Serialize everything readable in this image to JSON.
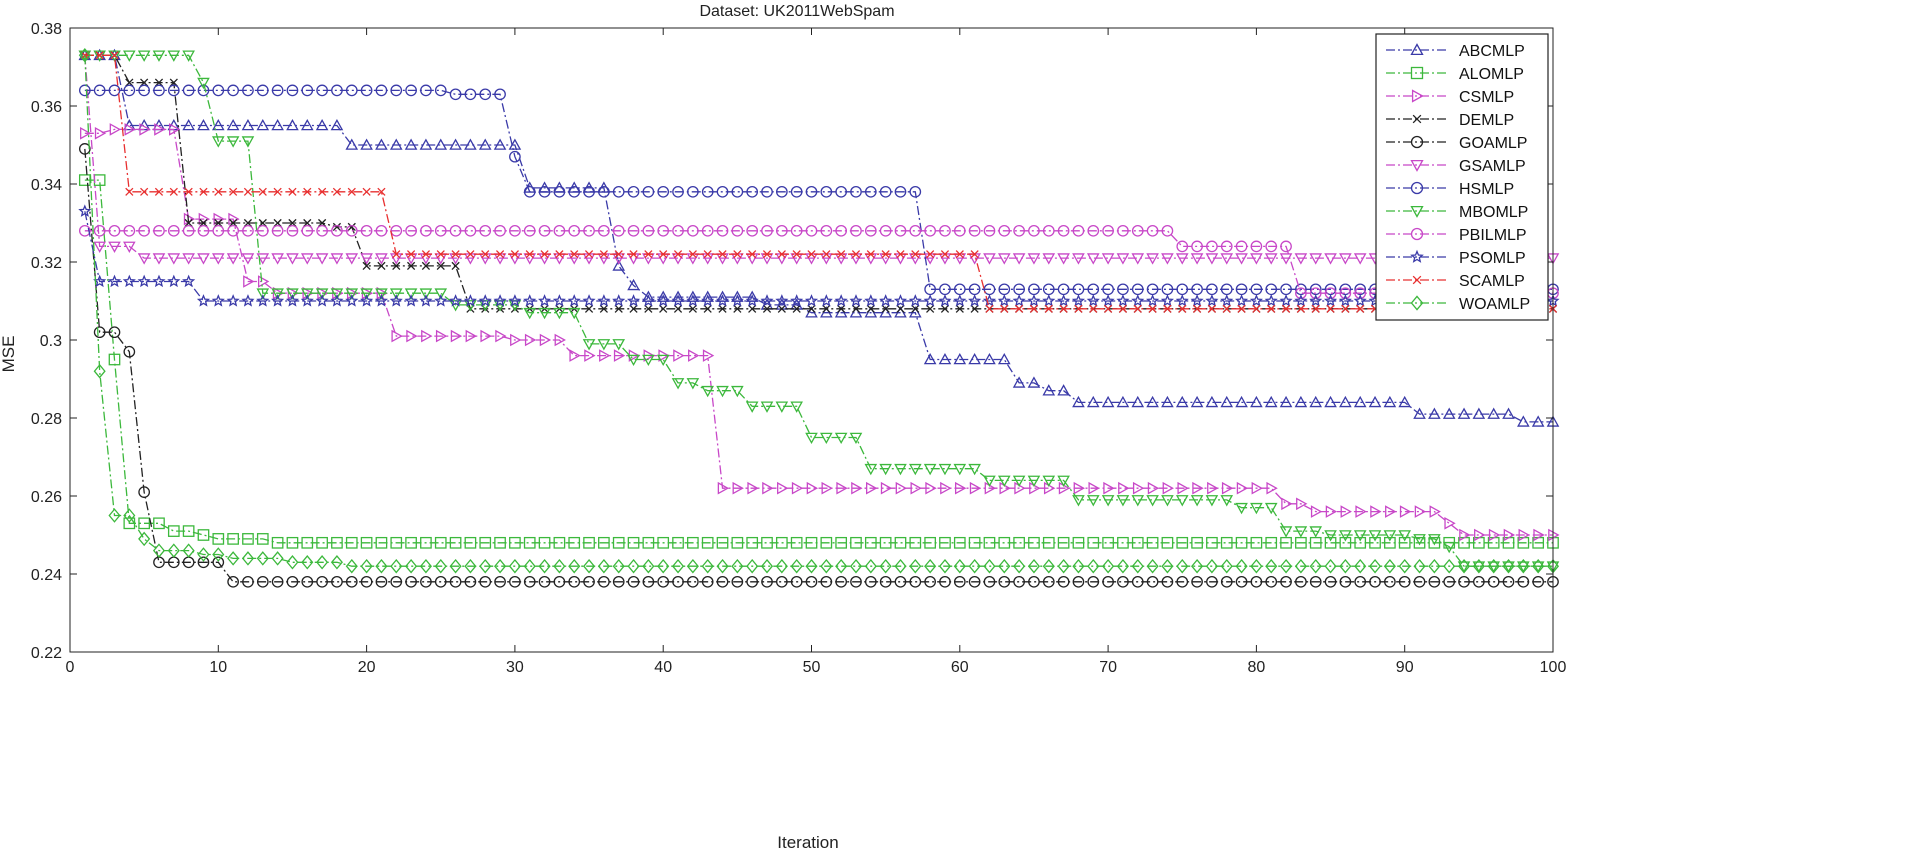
{
  "chart_data": {
    "type": "line",
    "title": "Dataset: UK2011WebSpam",
    "xlabel": "Iteration",
    "ylabel": "MSE",
    "xlim": [
      0,
      100
    ],
    "ylim": [
      0.22,
      0.38
    ],
    "xticks": [
      0,
      10,
      20,
      30,
      40,
      50,
      60,
      70,
      80,
      90,
      100
    ],
    "yticks": [
      0.22,
      0.24,
      0.26,
      0.28,
      0.3,
      0.32,
      0.34,
      0.36,
      0.38
    ],
    "xtick_labels": [
      "0",
      "10",
      "20",
      "30",
      "40",
      "50",
      "60",
      "70",
      "80",
      "90",
      "100"
    ],
    "ytick_labels": [
      "0.22",
      "0.24",
      "0.26",
      "0.28",
      "0.3",
      "0.32",
      "0.34",
      "0.36",
      "0.38"
    ],
    "legend_position": "top-right",
    "series": [
      {
        "name": "ABCMLP",
        "color": "#3a3aa8",
        "marker": "triangle-up",
        "steps": [
          [
            1,
            0.373
          ],
          [
            4,
            0.355
          ],
          [
            19,
            0.35
          ],
          [
            31,
            0.339
          ],
          [
            37,
            0.319
          ],
          [
            38,
            0.314
          ],
          [
            39,
            0.311
          ],
          [
            47,
            0.309
          ],
          [
            50,
            0.307
          ],
          [
            58,
            0.295
          ],
          [
            64,
            0.289
          ],
          [
            66,
            0.287
          ],
          [
            68,
            0.284
          ],
          [
            91,
            0.281
          ],
          [
            98,
            0.279
          ]
        ]
      },
      {
        "name": "ALOMLP",
        "color": "#3cb83c",
        "marker": "square",
        "steps": [
          [
            1,
            0.341
          ],
          [
            3,
            0.295
          ],
          [
            4,
            0.253
          ],
          [
            7,
            0.251
          ],
          [
            9,
            0.25
          ],
          [
            10,
            0.249
          ],
          [
            14,
            0.248
          ]
        ]
      },
      {
        "name": "CSMLP",
        "color": "#c848c8",
        "marker": "triangle-right",
        "steps": [
          [
            1,
            0.353
          ],
          [
            3,
            0.354
          ],
          [
            8,
            0.331
          ],
          [
            12,
            0.315
          ],
          [
            14,
            0.312
          ],
          [
            22,
            0.301
          ],
          [
            30,
            0.3
          ],
          [
            34,
            0.296
          ],
          [
            44,
            0.262
          ],
          [
            82,
            0.258
          ],
          [
            84,
            0.256
          ],
          [
            93,
            0.253
          ],
          [
            94,
            0.25
          ]
        ]
      },
      {
        "name": "DEMLP",
        "color": "#222222",
        "marker": "cross",
        "steps": [
          [
            1,
            0.373
          ],
          [
            4,
            0.366
          ],
          [
            8,
            0.33
          ],
          [
            18,
            0.329
          ],
          [
            20,
            0.319
          ],
          [
            27,
            0.308
          ]
        ]
      },
      {
        "name": "GOAMLP",
        "color": "#222222",
        "marker": "circle",
        "steps": [
          [
            1,
            0.349
          ],
          [
            2,
            0.302
          ],
          [
            4,
            0.297
          ],
          [
            5,
            0.261
          ],
          [
            6,
            0.243
          ],
          [
            11,
            0.238
          ]
        ]
      },
      {
        "name": "GSAMLP",
        "color": "#c848c8",
        "marker": "triangle-down",
        "steps": [
          [
            1,
            0.373
          ],
          [
            2,
            0.324
          ],
          [
            5,
            0.321
          ],
          [
            83,
            0.321
          ],
          [
            100,
            0.321
          ]
        ]
      },
      {
        "name": "HSMLP",
        "color": "#3a3aa8",
        "marker": "circle",
        "steps": [
          [
            1,
            0.364
          ],
          [
            26,
            0.363
          ],
          [
            30,
            0.347
          ],
          [
            31,
            0.338
          ],
          [
            58,
            0.313
          ]
        ]
      },
      {
        "name": "MBOMLP",
        "color": "#3cb83c",
        "marker": "triangle-down",
        "steps": [
          [
            1,
            0.373
          ],
          [
            9,
            0.366
          ],
          [
            10,
            0.351
          ],
          [
            13,
            0.312
          ],
          [
            26,
            0.309
          ],
          [
            31,
            0.307
          ],
          [
            35,
            0.299
          ],
          [
            38,
            0.295
          ],
          [
            41,
            0.289
          ],
          [
            43,
            0.287
          ],
          [
            46,
            0.283
          ],
          [
            50,
            0.275
          ],
          [
            54,
            0.267
          ],
          [
            62,
            0.264
          ],
          [
            68,
            0.259
          ],
          [
            79,
            0.257
          ],
          [
            82,
            0.251
          ],
          [
            85,
            0.25
          ],
          [
            91,
            0.249
          ],
          [
            93,
            0.247
          ],
          [
            94,
            0.242
          ]
        ]
      },
      {
        "name": "PBILMLP",
        "color": "#c848c8",
        "marker": "circle",
        "steps": [
          [
            1,
            0.328
          ],
          [
            74,
            0.328
          ],
          [
            75,
            0.324
          ],
          [
            83,
            0.312
          ],
          [
            100,
            0.312
          ]
        ]
      },
      {
        "name": "PSOMLP",
        "color": "#3a3aa8",
        "marker": "star",
        "steps": [
          [
            1,
            0.333
          ],
          [
            2,
            0.315
          ],
          [
            9,
            0.31
          ]
        ]
      },
      {
        "name": "SCAMLP",
        "color": "#e83030",
        "marker": "cross",
        "steps": [
          [
            1,
            0.373
          ],
          [
            4,
            0.338
          ],
          [
            22,
            0.322
          ],
          [
            62,
            0.308
          ]
        ]
      },
      {
        "name": "WOAMLP",
        "color": "#3cb83c",
        "marker": "diamond",
        "steps": [
          [
            1,
            0.373
          ],
          [
            2,
            0.292
          ],
          [
            3,
            0.255
          ],
          [
            5,
            0.249
          ],
          [
            6,
            0.246
          ],
          [
            9,
            0.245
          ],
          [
            11,
            0.244
          ],
          [
            15,
            0.243
          ],
          [
            19,
            0.242
          ]
        ]
      }
    ]
  }
}
